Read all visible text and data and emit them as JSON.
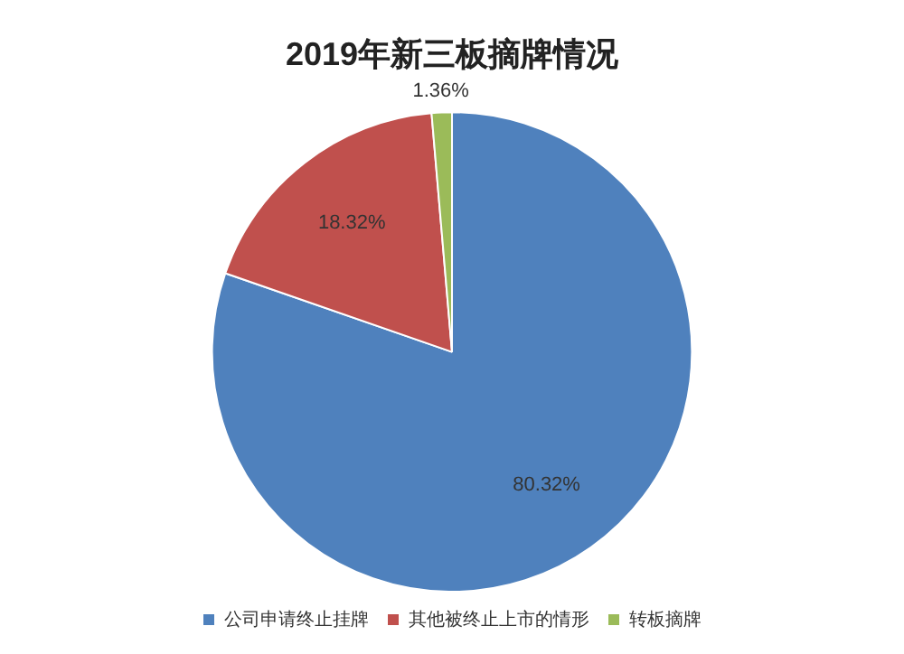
{
  "chart_data": {
    "type": "pie",
    "title": "2019年新三板摘牌情况",
    "categories": [
      "公司申请终止挂牌",
      "其他被终止上市的情形",
      "转板摘牌"
    ],
    "values": [
      80.32,
      18.32,
      1.36
    ],
    "colors": [
      "#4f81bd",
      "#c0504d",
      "#9bbb59"
    ],
    "value_labels": [
      "80.32%",
      "18.32%",
      "1.36%"
    ],
    "legend": "bottom"
  }
}
